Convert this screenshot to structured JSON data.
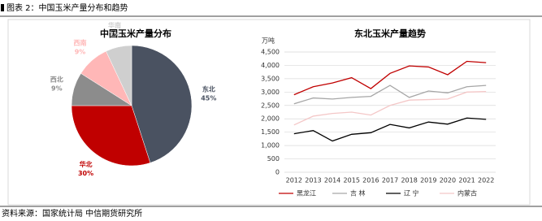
{
  "caption": "图表 2：中国玉米产量分布和趋势",
  "source": "资料来源：国家统计局 中信期货研究所",
  "chart_data": [
    {
      "type": "pie",
      "title": "中国玉米产量分布",
      "categories": [
        "东北",
        "华北",
        "西北",
        "西南",
        "华南"
      ],
      "values": [
        45,
        30,
        9,
        9,
        7
      ],
      "value_labels": [
        "45%",
        "30%",
        "9%",
        "9%",
        "7%"
      ],
      "colors": [
        "#4a5261",
        "#c00000",
        "#8c8c8c",
        "#ffb7b7",
        "#cfcfcf"
      ]
    },
    {
      "type": "line",
      "title": "东北玉米产量趋势",
      "y_unit": "万吨",
      "categories": [
        "2012",
        "2013",
        "2014",
        "2015",
        "2016",
        "2017",
        "2018",
        "2019",
        "2020",
        "2021",
        "2022"
      ],
      "series": [
        {
          "name": "黑龙江",
          "color": "#c00000",
          "values": [
            2900,
            3200,
            3340,
            3540,
            3130,
            3700,
            3980,
            3940,
            3650,
            4150,
            4100
          ]
        },
        {
          "name": "吉 林",
          "color": "#a6a6a6",
          "values": [
            2560,
            2780,
            2740,
            2800,
            2840,
            3250,
            2800,
            3040,
            2970,
            3200,
            3250
          ]
        },
        {
          "name": "辽 宁",
          "color": "#000000",
          "values": [
            1440,
            1560,
            1170,
            1420,
            1480,
            1790,
            1660,
            1880,
            1800,
            2030,
            1980
          ]
        },
        {
          "name": "内蒙古",
          "color": "#f4c7c7",
          "values": [
            1770,
            2100,
            2200,
            2250,
            2140,
            2500,
            2700,
            2720,
            2740,
            3000,
            3020
          ]
        }
      ],
      "ylim": [
        0,
        4500
      ],
      "yticks": [
        0,
        500,
        {
          "value": 1000,
          "label": "1,000"
        },
        {
          "value": 1500,
          "label": "1,500"
        },
        {
          "value": 2000,
          "label": "2,000"
        },
        {
          "value": 2500,
          "label": "2,500"
        },
        {
          "value": 3000,
          "label": "3,000"
        },
        {
          "value": 3500,
          "label": "3,500"
        },
        {
          "value": 4000,
          "label": "4,000"
        },
        {
          "value": 4500,
          "label": "4,500"
        }
      ],
      "grid": true
    }
  ]
}
